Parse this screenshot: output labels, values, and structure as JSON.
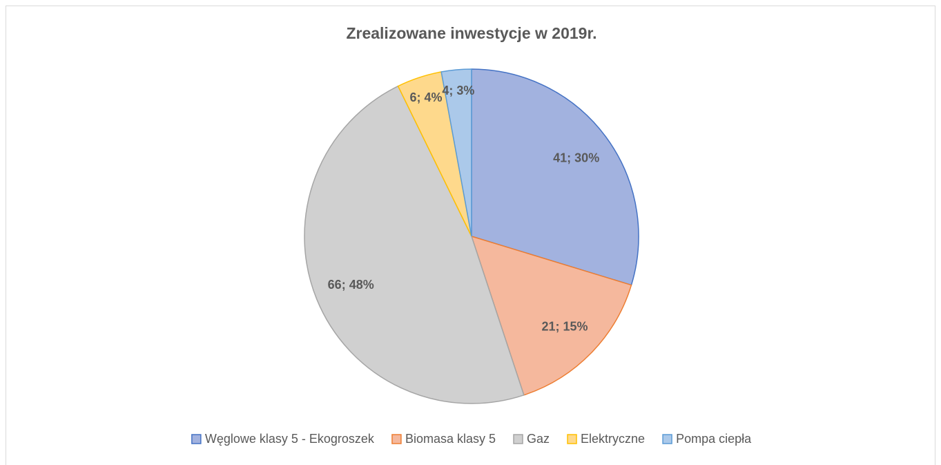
{
  "chart_data": {
    "type": "pie",
    "title": "Zrealizowane inwestycje w 2019r.",
    "categories": [
      "Węglowe klasy 5 - Ekogroszek",
      "Biomasa klasy 5",
      "Gaz",
      "Elektryczne",
      "Pompa ciepła"
    ],
    "values": [
      41,
      21,
      66,
      6,
      4
    ],
    "value_labels": [
      "41; 30%",
      "21; 15%",
      "66; 48%",
      "6; 4%",
      "4; 3%"
    ],
    "colors": [
      "#a2b2df",
      "#f5b89d",
      "#d0d0d0",
      "#fed98c",
      "#abc9ea"
    ],
    "edgecolors": [
      "#4472c4",
      "#ed7d31",
      "#a5a5a5",
      "#ffc000",
      "#5b9bd5"
    ],
    "legend": "bottom"
  }
}
